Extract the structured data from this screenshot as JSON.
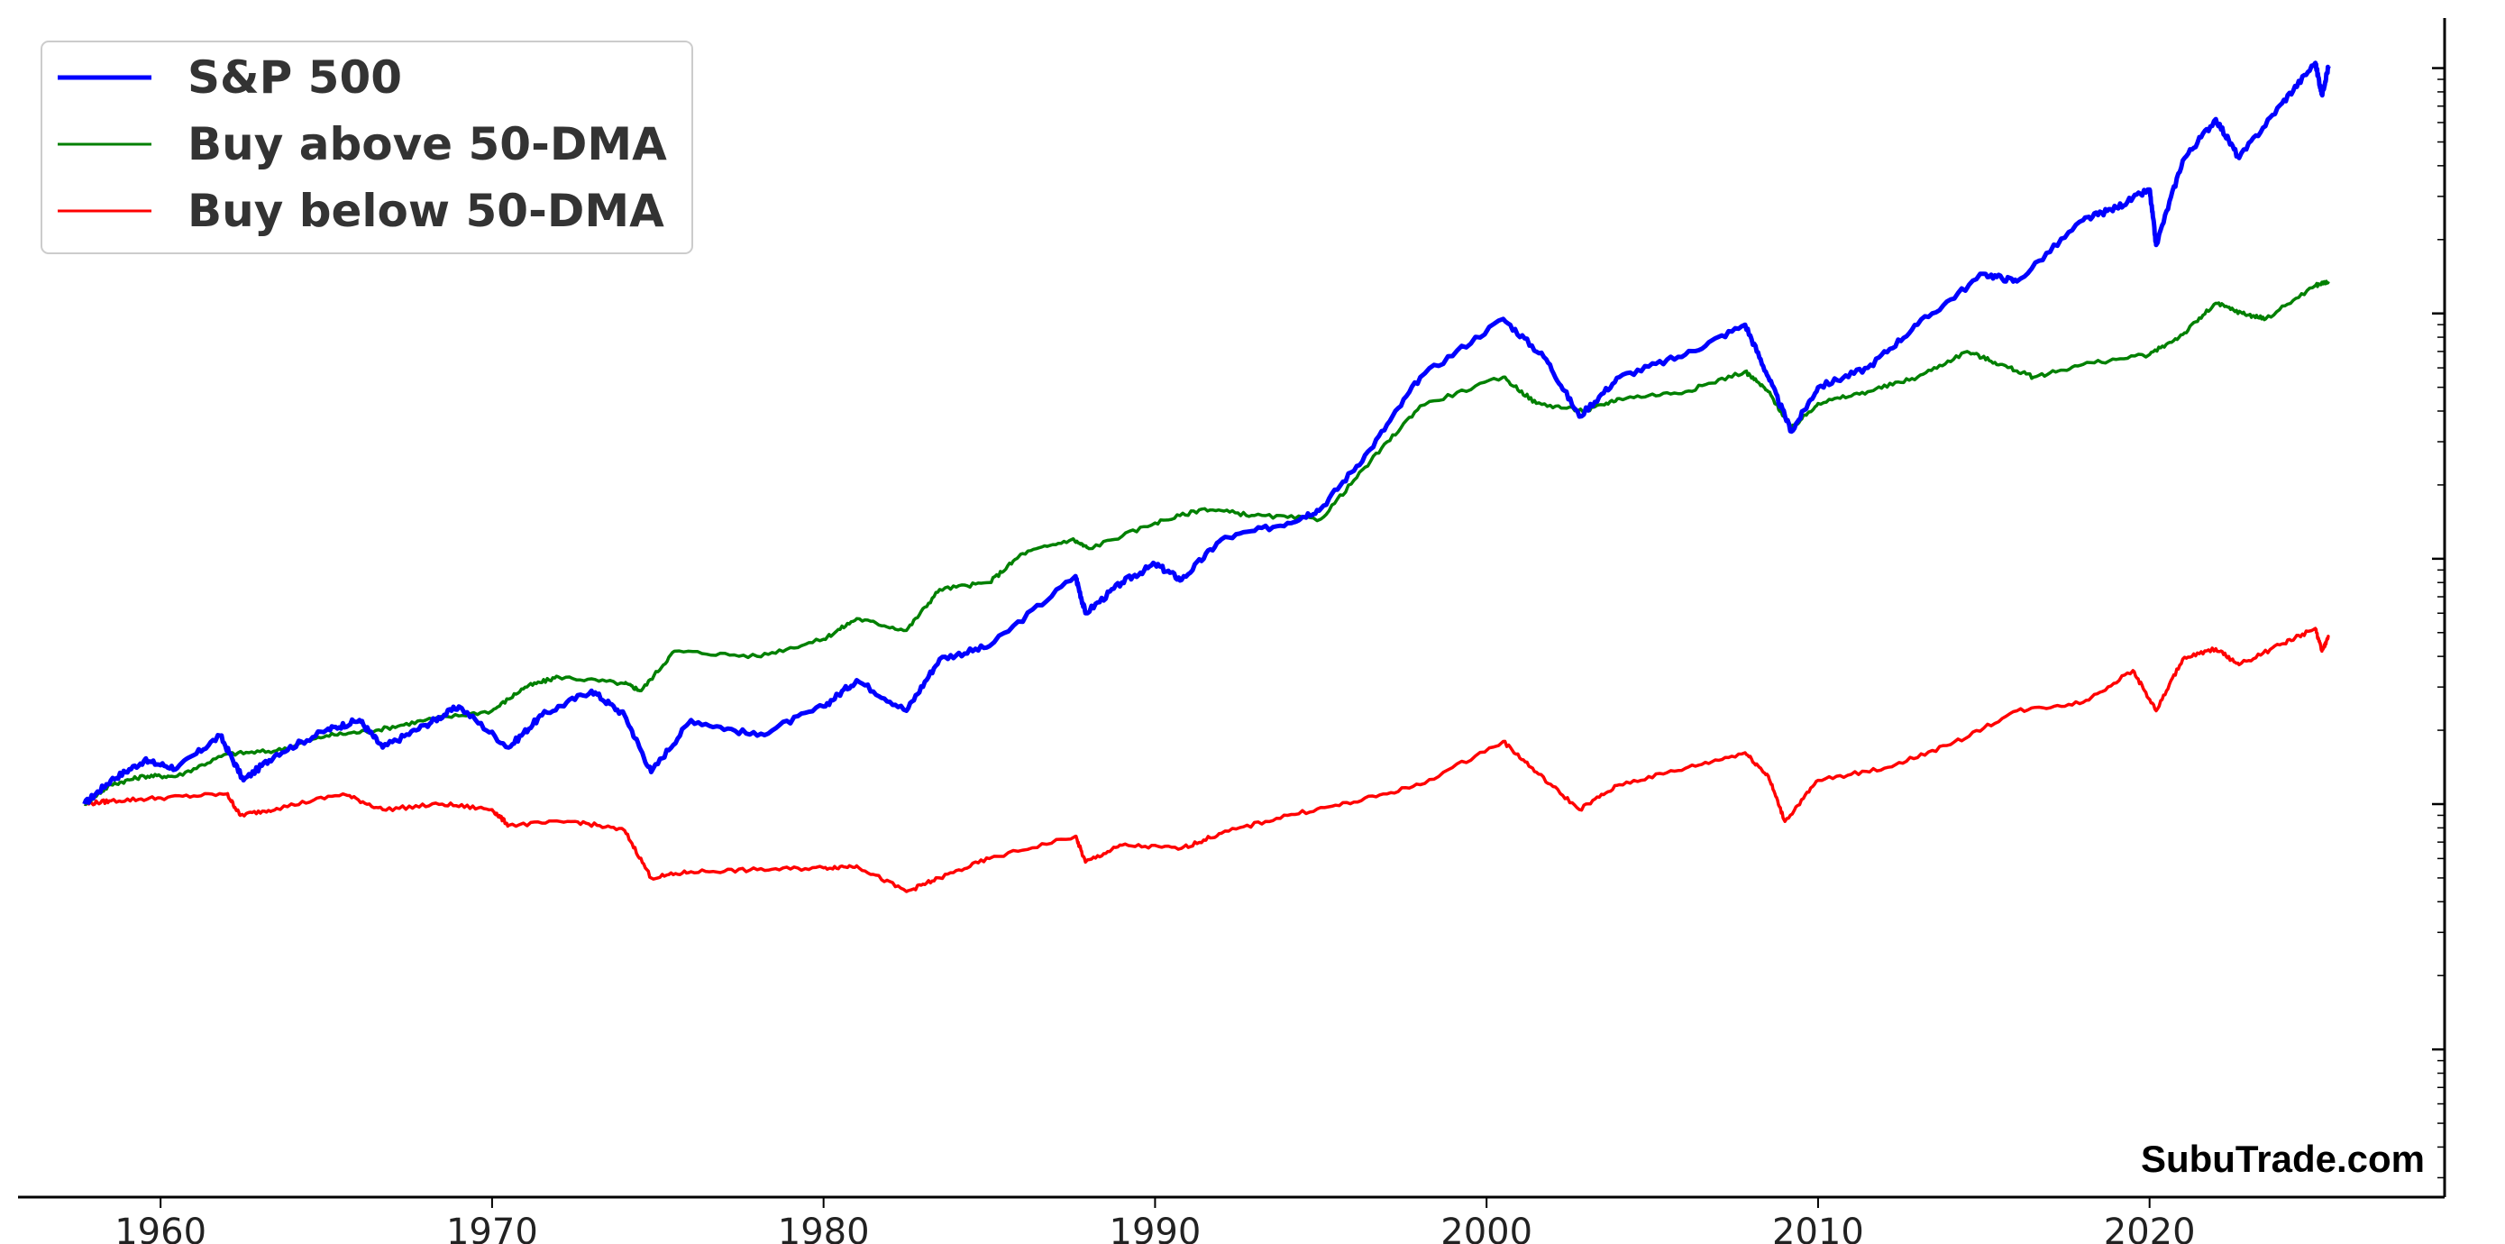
{
  "chart_data": {
    "type": "line",
    "title": "",
    "xlabel": "",
    "ylabel": "",
    "xlim": [
      1955.7,
      2028.9
    ],
    "ylim": [
      0.025,
      1600
    ],
    "yscale": "log",
    "grid": false,
    "legend_position": "top-left",
    "x_ticks": [
      1960,
      1970,
      1980,
      1990,
      2000,
      2010,
      2020
    ],
    "x_tick_labels": [
      "1960",
      "1970",
      "1980",
      "1990",
      "2000",
      "2010",
      "2020"
    ],
    "watermark": "SubuTrade.com",
    "series": [
      {
        "name": "S&P 500",
        "color": "#0000ff",
        "points": [
          [
            1957.7,
            1.0
          ],
          [
            1958.5,
            1.25
          ],
          [
            1959.5,
            1.5
          ],
          [
            1960.5,
            1.4
          ],
          [
            1961.8,
            1.9
          ],
          [
            1962.5,
            1.25
          ],
          [
            1963.5,
            1.6
          ],
          [
            1965.0,
            2.0
          ],
          [
            1966.0,
            2.2
          ],
          [
            1966.7,
            1.7
          ],
          [
            1968.0,
            2.1
          ],
          [
            1969.0,
            2.5
          ],
          [
            1970.5,
            1.7
          ],
          [
            1971.5,
            2.3
          ],
          [
            1973.0,
            2.9
          ],
          [
            1974.0,
            2.3
          ],
          [
            1974.8,
            1.35
          ],
          [
            1976.0,
            2.2
          ],
          [
            1978.0,
            1.9
          ],
          [
            1980.0,
            2.5
          ],
          [
            1981.0,
            3.2
          ],
          [
            1982.5,
            2.4
          ],
          [
            1983.5,
            3.9
          ],
          [
            1985.0,
            4.4
          ],
          [
            1987.6,
            8.5
          ],
          [
            1987.9,
            6.0
          ],
          [
            1989.0,
            8.0
          ],
          [
            1990.0,
            9.5
          ],
          [
            1990.8,
            8.2
          ],
          [
            1992.0,
            12.0
          ],
          [
            1994.0,
            14.0
          ],
          [
            1995.0,
            16.0
          ],
          [
            1996.5,
            28.0
          ],
          [
            1998.0,
            55.0
          ],
          [
            2000.5,
            95.0
          ],
          [
            2001.8,
            65.0
          ],
          [
            2002.8,
            38.0
          ],
          [
            2004.0,
            55.0
          ],
          [
            2006.0,
            68.0
          ],
          [
            2007.8,
            90.0
          ],
          [
            2008.5,
            55.0
          ],
          [
            2009.2,
            33.0
          ],
          [
            2010.0,
            50.0
          ],
          [
            2011.5,
            60.0
          ],
          [
            2013.0,
            90.0
          ],
          [
            2015.0,
            145.0
          ],
          [
            2016.0,
            135.0
          ],
          [
            2018.0,
            240.0
          ],
          [
            2019.0,
            270.0
          ],
          [
            2020.0,
            320.0
          ],
          [
            2020.2,
            190.0
          ],
          [
            2021.0,
            420.0
          ],
          [
            2022.0,
            620.0
          ],
          [
            2022.7,
            430.0
          ],
          [
            2024.0,
            720.0
          ],
          [
            2025.0,
            1050.0
          ],
          [
            2025.2,
            780.0
          ],
          [
            2025.4,
            1020.0
          ]
        ]
      },
      {
        "name": "Buy above 50-DMA",
        "color": "#008000",
        "points": [
          [
            1957.7,
            1.0
          ],
          [
            1958.5,
            1.2
          ],
          [
            1959.5,
            1.3
          ],
          [
            1960.5,
            1.3
          ],
          [
            1962.0,
            1.6
          ],
          [
            1963.5,
            1.65
          ],
          [
            1965.0,
            1.9
          ],
          [
            1966.5,
            2.0
          ],
          [
            1968.0,
            2.2
          ],
          [
            1970.0,
            2.4
          ],
          [
            1971.0,
            3.0
          ],
          [
            1972.0,
            3.3
          ],
          [
            1974.0,
            3.1
          ],
          [
            1974.5,
            2.9
          ],
          [
            1975.5,
            4.2
          ],
          [
            1978.0,
            4.0
          ],
          [
            1980.0,
            4.7
          ],
          [
            1981.0,
            5.7
          ],
          [
            1982.5,
            5.1
          ],
          [
            1983.5,
            7.5
          ],
          [
            1985.0,
            8.0
          ],
          [
            1986.0,
            10.5
          ],
          [
            1987.5,
            12.0
          ],
          [
            1988.0,
            11.0
          ],
          [
            1990.0,
            14.0
          ],
          [
            1991.5,
            16.0
          ],
          [
            1993.0,
            15.0
          ],
          [
            1995.0,
            14.5
          ],
          [
            1996.5,
            25.0
          ],
          [
            1998.0,
            42.0
          ],
          [
            2000.5,
            55.0
          ],
          [
            2001.5,
            43.0
          ],
          [
            2003.0,
            40.0
          ],
          [
            2004.0,
            45.0
          ],
          [
            2006.0,
            48.0
          ],
          [
            2007.8,
            58.0
          ],
          [
            2008.5,
            48.0
          ],
          [
            2009.2,
            34.0
          ],
          [
            2010.0,
            43.0
          ],
          [
            2011.5,
            48.0
          ],
          [
            2013.0,
            55.0
          ],
          [
            2014.5,
            70.0
          ],
          [
            2015.5,
            62.0
          ],
          [
            2016.5,
            55.0
          ],
          [
            2018.0,
            62.0
          ],
          [
            2020.0,
            68.0
          ],
          [
            2021.0,
            82.0
          ],
          [
            2022.0,
            110.0
          ],
          [
            2022.8,
            100.0
          ],
          [
            2023.5,
            95.0
          ],
          [
            2025.0,
            130.0
          ],
          [
            2025.4,
            135.0
          ]
        ]
      },
      {
        "name": "Buy below 50-DMA",
        "color": "#ff0000",
        "points": [
          [
            1957.7,
            1.0
          ],
          [
            1958.5,
            1.03
          ],
          [
            1960.0,
            1.06
          ],
          [
            1962.0,
            1.1
          ],
          [
            1962.4,
            0.9
          ],
          [
            1963.5,
            0.96
          ],
          [
            1965.5,
            1.1
          ],
          [
            1966.7,
            0.95
          ],
          [
            1968.5,
            1.0
          ],
          [
            1970.0,
            0.95
          ],
          [
            1970.5,
            0.82
          ],
          [
            1972.5,
            0.85
          ],
          [
            1974.0,
            0.78
          ],
          [
            1974.8,
            0.5
          ],
          [
            1976.0,
            0.53
          ],
          [
            1978.0,
            0.54
          ],
          [
            1980.0,
            0.55
          ],
          [
            1981.0,
            0.56
          ],
          [
            1982.5,
            0.44
          ],
          [
            1983.5,
            0.5
          ],
          [
            1985.0,
            0.6
          ],
          [
            1987.6,
            0.74
          ],
          [
            1987.9,
            0.58
          ],
          [
            1989.0,
            0.68
          ],
          [
            1990.8,
            0.66
          ],
          [
            1992.0,
            0.76
          ],
          [
            1994.0,
            0.9
          ],
          [
            1996.0,
            1.02
          ],
          [
            1998.0,
            1.2
          ],
          [
            2000.5,
            1.8
          ],
          [
            2001.5,
            1.35
          ],
          [
            2002.8,
            0.95
          ],
          [
            2004.0,
            1.2
          ],
          [
            2006.0,
            1.4
          ],
          [
            2007.8,
            1.62
          ],
          [
            2008.5,
            1.3
          ],
          [
            2009.0,
            0.85
          ],
          [
            2010.0,
            1.25
          ],
          [
            2012.0,
            1.4
          ],
          [
            2014.0,
            1.75
          ],
          [
            2016.0,
            2.4
          ],
          [
            2018.0,
            2.6
          ],
          [
            2019.5,
            3.5
          ],
          [
            2020.2,
            2.4
          ],
          [
            2021.0,
            3.9
          ],
          [
            2022.0,
            4.3
          ],
          [
            2022.7,
            3.7
          ],
          [
            2024.0,
            4.5
          ],
          [
            2025.0,
            5.2
          ],
          [
            2025.2,
            4.2
          ],
          [
            2025.4,
            4.8
          ]
        ]
      }
    ]
  },
  "axes": {
    "axis_color": "#000000"
  }
}
